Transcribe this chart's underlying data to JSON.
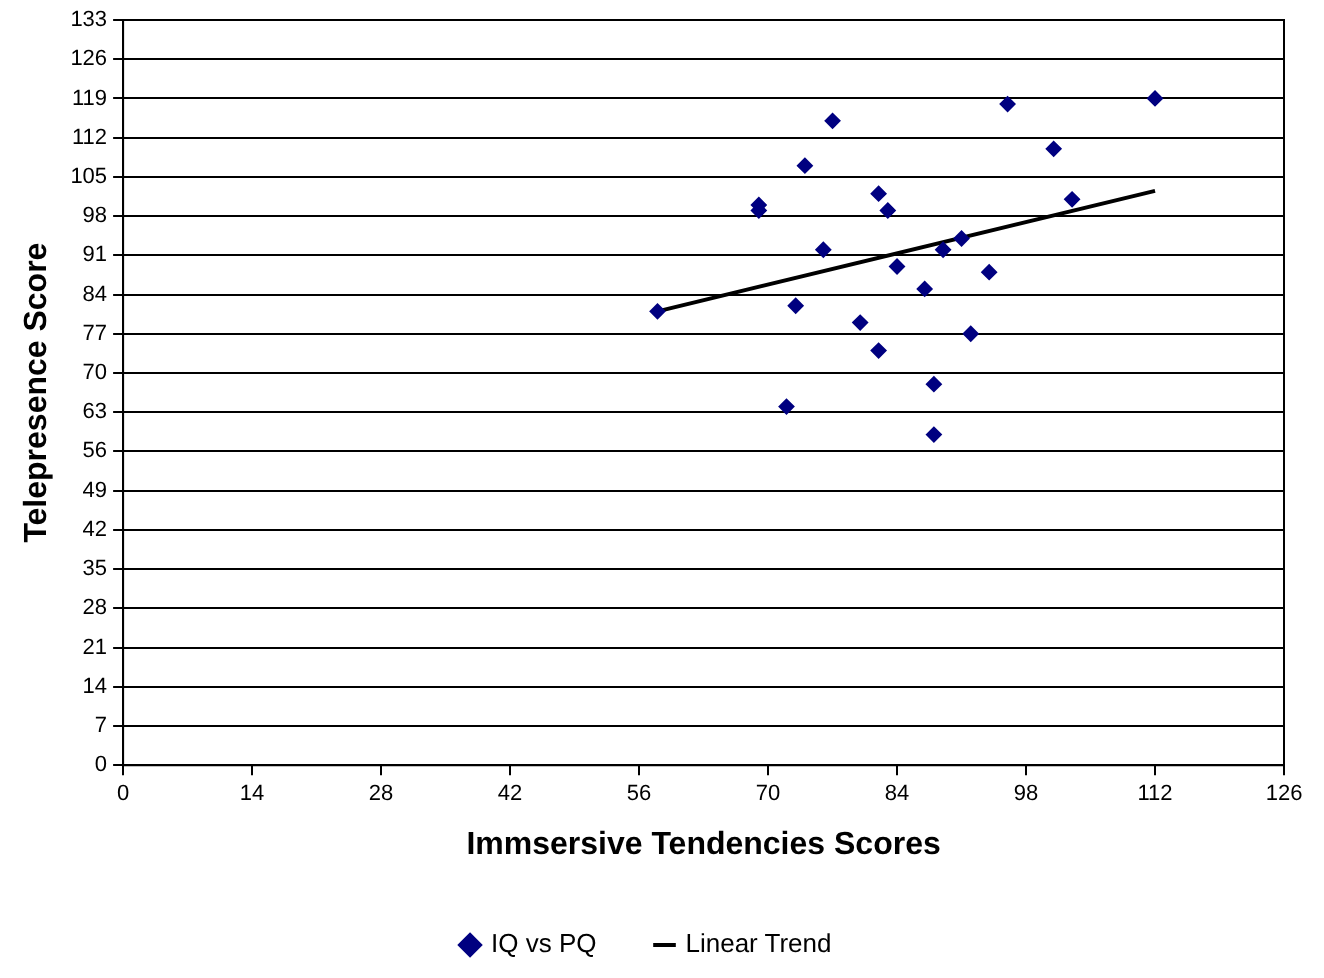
{
  "chart_data": {
    "type": "scatter",
    "xlabel": "Immsersive Tendencies Scores",
    "ylabel": "Telepresence Score",
    "xlim": [
      0,
      126
    ],
    "xticks": [
      0,
      14,
      28,
      42,
      56,
      70,
      84,
      98,
      112,
      126
    ],
    "ylim": [
      0,
      133
    ],
    "yticks": [
      0,
      7,
      14,
      21,
      28,
      35,
      42,
      49,
      56,
      63,
      70,
      77,
      84,
      91,
      98,
      105,
      112,
      119,
      126,
      133
    ],
    "grid": "y",
    "legend": "bottom",
    "marker": "diamond",
    "series": [
      {
        "name": "IQ vs PQ",
        "type": "scatter",
        "color": "#000080",
        "x": [
          58,
          69,
          69,
          77,
          74,
          82,
          83,
          76,
          89,
          91,
          84,
          94,
          87,
          73,
          80,
          92,
          82,
          88,
          96,
          112,
          101,
          103,
          72,
          88
        ],
        "values": [
          81,
          100,
          99,
          115,
          107,
          102,
          99,
          92,
          92,
          94,
          89,
          88,
          85,
          82,
          79,
          77,
          74,
          68,
          118,
          119,
          110,
          101,
          64,
          59
        ]
      },
      {
        "name": "Linear Trend",
        "type": "line",
        "marker": "none",
        "color": "#000000",
        "x": [
          58,
          112
        ],
        "values": [
          81,
          102.5
        ]
      }
    ]
  }
}
